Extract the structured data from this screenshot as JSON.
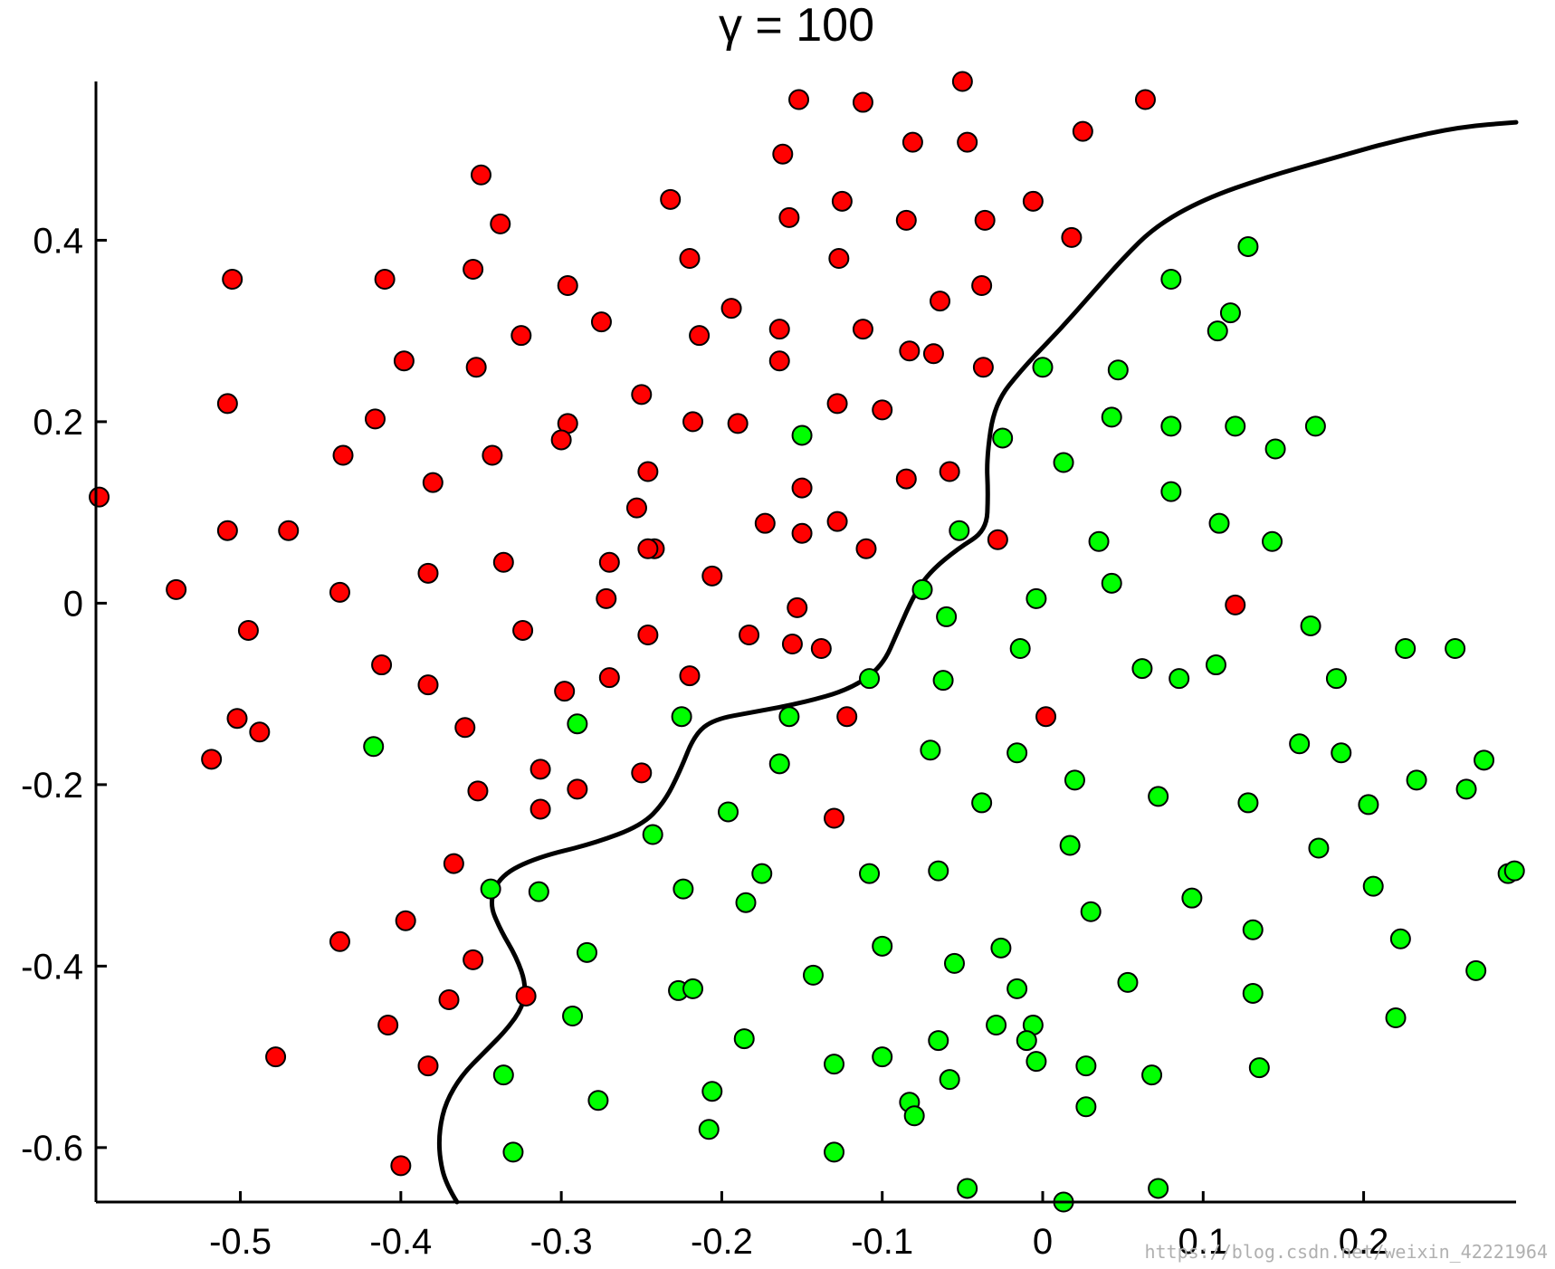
{
  "chart_data": {
    "type": "scatter",
    "title": "γ = 100",
    "xlabel": "",
    "ylabel": "",
    "xlim": [
      -0.59,
      0.295
    ],
    "ylim": [
      -0.66,
      0.575
    ],
    "xticks": [
      -0.5,
      -0.4,
      -0.3,
      -0.2,
      -0.1,
      0,
      0.1,
      0.2
    ],
    "xtick_labels": [
      "-0.5",
      "-0.4",
      "-0.3",
      "-0.2",
      "-0.1",
      "0",
      "0.1",
      "0.2"
    ],
    "yticks": [
      0.4,
      0.2,
      0,
      -0.2,
      -0.4,
      -0.6
    ],
    "ytick_labels": [
      "0.4",
      "0.2",
      "0",
      "-0.2",
      "-0.4",
      "-0.6"
    ],
    "grid": false,
    "series": [
      {
        "color": "#ff0000",
        "points": [
          [
            -0.05,
            0.575
          ],
          [
            -0.152,
            0.555
          ],
          [
            -0.112,
            0.552
          ],
          [
            0.064,
            0.555
          ],
          [
            0.025,
            0.52
          ],
          [
            -0.081,
            0.508
          ],
          [
            -0.047,
            0.508
          ],
          [
            -0.162,
            0.495
          ],
          [
            -0.35,
            0.472
          ],
          [
            -0.232,
            0.445
          ],
          [
            -0.125,
            0.443
          ],
          [
            -0.006,
            0.443
          ],
          [
            -0.338,
            0.418
          ],
          [
            -0.158,
            0.425
          ],
          [
            -0.085,
            0.422
          ],
          [
            -0.036,
            0.422
          ],
          [
            0.018,
            0.403
          ],
          [
            -0.22,
            0.38
          ],
          [
            -0.127,
            0.38
          ],
          [
            -0.355,
            0.368
          ],
          [
            -0.505,
            0.357
          ],
          [
            -0.41,
            0.357
          ],
          [
            -0.296,
            0.35
          ],
          [
            -0.038,
            0.35
          ],
          [
            -0.064,
            0.333
          ],
          [
            -0.194,
            0.325
          ],
          [
            -0.275,
            0.31
          ],
          [
            -0.164,
            0.302
          ],
          [
            -0.112,
            0.302
          ],
          [
            -0.214,
            0.295
          ],
          [
            -0.325,
            0.295
          ],
          [
            -0.083,
            0.278
          ],
          [
            -0.068,
            0.275
          ],
          [
            -0.398,
            0.267
          ],
          [
            -0.164,
            0.267
          ],
          [
            -0.353,
            0.26
          ],
          [
            -0.037,
            0.26
          ],
          [
            -0.25,
            0.23
          ],
          [
            -0.508,
            0.22
          ],
          [
            -0.128,
            0.22
          ],
          [
            -0.1,
            0.213
          ],
          [
            -0.416,
            0.203
          ],
          [
            -0.218,
            0.2
          ],
          [
            -0.19,
            0.198
          ],
          [
            -0.296,
            0.198
          ],
          [
            -0.3,
            0.18
          ],
          [
            -0.436,
            0.163
          ],
          [
            -0.343,
            0.163
          ],
          [
            -0.246,
            0.145
          ],
          [
            -0.058,
            0.145
          ],
          [
            -0.085,
            0.137
          ],
          [
            -0.38,
            0.133
          ],
          [
            -0.15,
            0.127
          ],
          [
            -0.253,
            0.105
          ],
          [
            -0.173,
            0.088
          ],
          [
            -0.128,
            0.09
          ],
          [
            -0.508,
            0.08
          ],
          [
            -0.47,
            0.08
          ],
          [
            -0.15,
            0.077
          ],
          [
            -0.028,
            0.07
          ],
          [
            -0.242,
            0.06
          ],
          [
            -0.246,
            0.06
          ],
          [
            -0.11,
            0.06
          ],
          [
            -0.27,
            0.045
          ],
          [
            -0.336,
            0.045
          ],
          [
            -0.383,
            0.033
          ],
          [
            -0.206,
            0.03
          ],
          [
            -0.54,
            0.015
          ],
          [
            -0.438,
            0.012
          ],
          [
            -0.272,
            0.005
          ],
          [
            -0.153,
            -0.005
          ],
          [
            0.12,
            -0.002
          ],
          [
            -0.495,
            -0.03
          ],
          [
            -0.324,
            -0.03
          ],
          [
            -0.246,
            -0.035
          ],
          [
            -0.183,
            -0.035
          ],
          [
            -0.156,
            -0.045
          ],
          [
            -0.138,
            -0.05
          ],
          [
            -0.412,
            -0.068
          ],
          [
            -0.383,
            -0.09
          ],
          [
            -0.27,
            -0.082
          ],
          [
            -0.22,
            -0.08
          ],
          [
            -0.298,
            -0.097
          ],
          [
            -0.502,
            -0.127
          ],
          [
            -0.122,
            -0.125
          ],
          [
            0.002,
            -0.125
          ],
          [
            -0.488,
            -0.142
          ],
          [
            -0.36,
            -0.137
          ],
          [
            -0.518,
            -0.172
          ],
          [
            -0.313,
            -0.183
          ],
          [
            -0.25,
            -0.187
          ],
          [
            -0.352,
            -0.207
          ],
          [
            -0.29,
            -0.205
          ],
          [
            -0.313,
            -0.227
          ],
          [
            -0.13,
            -0.237
          ],
          [
            -0.367,
            -0.287
          ],
          [
            -0.438,
            -0.373
          ],
          [
            -0.397,
            -0.35
          ],
          [
            -0.355,
            -0.393
          ],
          [
            -0.37,
            -0.437
          ],
          [
            -0.322,
            -0.433
          ],
          [
            -0.408,
            -0.465
          ],
          [
            -0.478,
            -0.5
          ],
          [
            -0.383,
            -0.51
          ],
          [
            -0.4,
            -0.62
          ],
          [
            -0.588,
            0.117
          ]
        ]
      },
      {
        "color": "#00ff00",
        "points": [
          [
            0.128,
            0.393
          ],
          [
            0.08,
            0.357
          ],
          [
            0.117,
            0.32
          ],
          [
            0.109,
            0.3
          ],
          [
            0.0,
            0.26
          ],
          [
            0.047,
            0.257
          ],
          [
            -0.15,
            0.185
          ],
          [
            -0.025,
            0.182
          ],
          [
            0.043,
            0.205
          ],
          [
            0.08,
            0.195
          ],
          [
            0.12,
            0.195
          ],
          [
            0.17,
            0.195
          ],
          [
            0.145,
            0.17
          ],
          [
            0.013,
            0.155
          ],
          [
            0.08,
            0.123
          ],
          [
            -0.052,
            0.08
          ],
          [
            0.11,
            0.088
          ],
          [
            0.035,
            0.068
          ],
          [
            0.143,
            0.068
          ],
          [
            -0.075,
            0.015
          ],
          [
            0.043,
            0.022
          ],
          [
            -0.004,
            0.005
          ],
          [
            -0.06,
            -0.015
          ],
          [
            0.167,
            -0.025
          ],
          [
            -0.014,
            -0.05
          ],
          [
            0.226,
            -0.05
          ],
          [
            0.257,
            -0.05
          ],
          [
            0.062,
            -0.072
          ],
          [
            0.108,
            -0.068
          ],
          [
            -0.108,
            -0.083
          ],
          [
            -0.062,
            -0.085
          ],
          [
            0.085,
            -0.083
          ],
          [
            0.183,
            -0.083
          ],
          [
            -0.225,
            -0.125
          ],
          [
            -0.158,
            -0.125
          ],
          [
            -0.29,
            -0.133
          ],
          [
            -0.417,
            -0.158
          ],
          [
            -0.07,
            -0.162
          ],
          [
            -0.016,
            -0.165
          ],
          [
            0.16,
            -0.155
          ],
          [
            0.186,
            -0.165
          ],
          [
            -0.164,
            -0.177
          ],
          [
            0.275,
            -0.173
          ],
          [
            0.02,
            -0.195
          ],
          [
            0.233,
            -0.195
          ],
          [
            0.264,
            -0.205
          ],
          [
            -0.038,
            -0.22
          ],
          [
            0.072,
            -0.213
          ],
          [
            0.128,
            -0.22
          ],
          [
            0.203,
            -0.222
          ],
          [
            -0.196,
            -0.23
          ],
          [
            -0.243,
            -0.255
          ],
          [
            0.017,
            -0.267
          ],
          [
            0.172,
            -0.27
          ],
          [
            -0.065,
            -0.295
          ],
          [
            -0.108,
            -0.298
          ],
          [
            -0.175,
            -0.298
          ],
          [
            0.29,
            -0.298
          ],
          [
            0.294,
            -0.295
          ],
          [
            -0.344,
            -0.315
          ],
          [
            -0.314,
            -0.318
          ],
          [
            -0.224,
            -0.315
          ],
          [
            0.206,
            -0.312
          ],
          [
            -0.185,
            -0.33
          ],
          [
            0.093,
            -0.325
          ],
          [
            0.03,
            -0.34
          ],
          [
            0.131,
            -0.36
          ],
          [
            0.223,
            -0.37
          ],
          [
            -0.1,
            -0.378
          ],
          [
            -0.026,
            -0.38
          ],
          [
            -0.284,
            -0.385
          ],
          [
            -0.055,
            -0.397
          ],
          [
            -0.143,
            -0.41
          ],
          [
            0.27,
            -0.405
          ],
          [
            0.053,
            -0.418
          ],
          [
            -0.016,
            -0.425
          ],
          [
            -0.227,
            -0.427
          ],
          [
            -0.218,
            -0.425
          ],
          [
            0.131,
            -0.43
          ],
          [
            -0.293,
            -0.455
          ],
          [
            0.22,
            -0.457
          ],
          [
            -0.029,
            -0.465
          ],
          [
            -0.006,
            -0.465
          ],
          [
            -0.186,
            -0.48
          ],
          [
            -0.065,
            -0.482
          ],
          [
            -0.01,
            -0.482
          ],
          [
            -0.1,
            -0.5
          ],
          [
            -0.004,
            -0.505
          ],
          [
            -0.13,
            -0.508
          ],
          [
            0.027,
            -0.51
          ],
          [
            0.135,
            -0.512
          ],
          [
            -0.336,
            -0.52
          ],
          [
            0.068,
            -0.52
          ],
          [
            -0.058,
            -0.525
          ],
          [
            -0.206,
            -0.538
          ],
          [
            -0.277,
            -0.548
          ],
          [
            -0.083,
            -0.55
          ],
          [
            -0.08,
            -0.565
          ],
          [
            0.027,
            -0.555
          ],
          [
            -0.208,
            -0.58
          ],
          [
            -0.13,
            -0.605
          ],
          [
            -0.33,
            -0.605
          ],
          [
            -0.047,
            -0.645
          ],
          [
            0.072,
            -0.645
          ],
          [
            0.013,
            -0.66
          ]
        ]
      }
    ],
    "boundary_line": {
      "color": "#000000",
      "points": [
        [
          -0.365,
          -0.66
        ],
        [
          -0.372,
          -0.64
        ],
        [
          -0.376,
          -0.61
        ],
        [
          -0.376,
          -0.58
        ],
        [
          -0.372,
          -0.55
        ],
        [
          -0.362,
          -0.52
        ],
        [
          -0.348,
          -0.495
        ],
        [
          -0.334,
          -0.47
        ],
        [
          -0.324,
          -0.445
        ],
        [
          -0.322,
          -0.42
        ],
        [
          -0.328,
          -0.39
        ],
        [
          -0.338,
          -0.36
        ],
        [
          -0.345,
          -0.33
        ],
        [
          -0.338,
          -0.3
        ],
        [
          -0.315,
          -0.28
        ],
        [
          -0.28,
          -0.265
        ],
        [
          -0.25,
          -0.245
        ],
        [
          -0.236,
          -0.22
        ],
        [
          -0.226,
          -0.185
        ],
        [
          -0.217,
          -0.145
        ],
        [
          -0.205,
          -0.128
        ],
        [
          -0.18,
          -0.12
        ],
        [
          -0.15,
          -0.11
        ],
        [
          -0.12,
          -0.095
        ],
        [
          -0.1,
          -0.07
        ],
        [
          -0.09,
          -0.03
        ],
        [
          -0.08,
          0.01
        ],
        [
          -0.07,
          0.035
        ],
        [
          -0.053,
          0.06
        ],
        [
          -0.035,
          0.08
        ],
        [
          -0.034,
          0.12
        ],
        [
          -0.035,
          0.16
        ],
        [
          -0.03,
          0.22
        ],
        [
          -0.012,
          0.26
        ],
        [
          0.01,
          0.3
        ],
        [
          0.03,
          0.34
        ],
        [
          0.05,
          0.38
        ],
        [
          0.07,
          0.415
        ],
        [
          0.1,
          0.445
        ],
        [
          0.14,
          0.47
        ],
        [
          0.18,
          0.49
        ],
        [
          0.22,
          0.51
        ],
        [
          0.26,
          0.525
        ],
        [
          0.295,
          0.53
        ]
      ]
    },
    "watermark": "https://blog.csdn.net/weixin_42221964"
  }
}
